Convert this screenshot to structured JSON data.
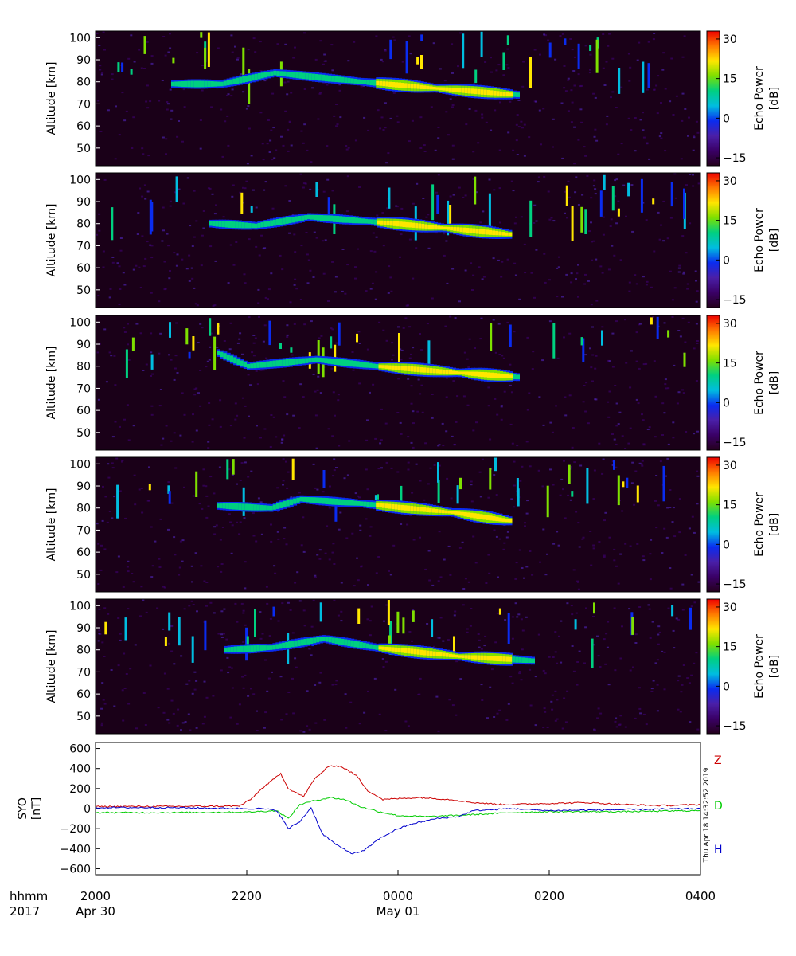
{
  "chart_data": [
    {
      "type": "heatmap",
      "panel": 1,
      "ylabel": "Altitude [km]",
      "yticks": [
        50,
        60,
        70,
        80,
        90,
        100
      ],
      "ylim": [
        42,
        103
      ],
      "xlim_hours": [
        20,
        28
      ],
      "colorbar": {
        "label_line1": "Echo Power",
        "label_line2": "[dB]",
        "ticks": [
          30,
          15,
          0,
          -15
        ],
        "range": [
          -18,
          33
        ]
      },
      "echo_layer": [
        {
          "x": 21.0,
          "alt": 79
        },
        {
          "x": 21.65,
          "alt": 79
        },
        {
          "x": 22.35,
          "alt": 84
        },
        {
          "x": 23.5,
          "alt": 80
        },
        {
          "x": 0.5,
          "alt": 77
        },
        {
          "x": 1.6,
          "alt": 74
        }
      ]
    },
    {
      "type": "heatmap",
      "panel": 2,
      "ylabel": "Altitude [km]",
      "yticks": [
        50,
        60,
        70,
        80,
        90,
        100
      ],
      "ylim": [
        42,
        103
      ],
      "xlim_hours": [
        20,
        28
      ],
      "colorbar": {
        "label_line1": "Echo Power",
        "label_line2": "[dB]",
        "ticks": [
          30,
          15,
          0,
          -15
        ],
        "range": [
          -18,
          33
        ]
      },
      "echo_layer": [
        {
          "x": 21.5,
          "alt": 80
        },
        {
          "x": 22.1,
          "alt": 79
        },
        {
          "x": 22.8,
          "alt": 83
        },
        {
          "x": 23.6,
          "alt": 81
        },
        {
          "x": 0.6,
          "alt": 78
        },
        {
          "x": 1.5,
          "alt": 75
        }
      ]
    },
    {
      "type": "heatmap",
      "panel": 3,
      "ylabel": "Altitude [km]",
      "yticks": [
        50,
        60,
        70,
        80,
        90,
        100
      ],
      "ylim": [
        42,
        103
      ],
      "xlim_hours": [
        20,
        28
      ],
      "colorbar": {
        "label_line1": "Echo Power",
        "label_line2": "[dB]",
        "ticks": [
          30,
          15,
          0,
          -15
        ],
        "range": [
          -18,
          33
        ]
      },
      "echo_layer": [
        {
          "x": 21.6,
          "alt": 86
        },
        {
          "x": 22.0,
          "alt": 80
        },
        {
          "x": 22.9,
          "alt": 83
        },
        {
          "x": 23.7,
          "alt": 80
        },
        {
          "x": 0.8,
          "alt": 77
        },
        {
          "x": 1.6,
          "alt": 75
        }
      ]
    },
    {
      "type": "heatmap",
      "panel": 4,
      "ylabel": "Altitude [km]",
      "yticks": [
        50,
        60,
        70,
        80,
        90,
        100
      ],
      "ylim": [
        42,
        103
      ],
      "xlim_hours": [
        20,
        28
      ],
      "colorbar": {
        "label_line1": "Echo Power",
        "label_line2": "[dB]",
        "ticks": [
          30,
          15,
          0,
          -15
        ],
        "range": [
          -18,
          33
        ]
      },
      "echo_layer": [
        {
          "x": 21.6,
          "alt": 81
        },
        {
          "x": 22.3,
          "alt": 80
        },
        {
          "x": 22.7,
          "alt": 84
        },
        {
          "x": 23.5,
          "alt": 82
        },
        {
          "x": 0.7,
          "alt": 78
        },
        {
          "x": 1.5,
          "alt": 74
        }
      ]
    },
    {
      "type": "heatmap",
      "panel": 5,
      "ylabel": "Altitude [km]",
      "yticks": [
        50,
        60,
        70,
        80,
        90,
        100
      ],
      "ylim": [
        42,
        103
      ],
      "xlim_hours": [
        20,
        28
      ],
      "colorbar": {
        "label_line1": "Echo Power",
        "label_line2": "[dB]",
        "ticks": [
          30,
          15,
          0,
          -15
        ],
        "range": [
          -18,
          33
        ]
      },
      "echo_layer": [
        {
          "x": 21.7,
          "alt": 80
        },
        {
          "x": 22.3,
          "alt": 81
        },
        {
          "x": 23.0,
          "alt": 85
        },
        {
          "x": 23.7,
          "alt": 81
        },
        {
          "x": 0.8,
          "alt": 77
        },
        {
          "x": 1.8,
          "alt": 75
        }
      ]
    },
    {
      "type": "line",
      "panel": 6,
      "ylabel_line1": "SYO",
      "ylabel_line2": "[nT]",
      "ylim": [
        -660,
        660
      ],
      "yticks": [
        600,
        400,
        200,
        0,
        -200,
        -400,
        -600
      ],
      "series": [
        {
          "name": "Z",
          "color": "#cc0000",
          "x": [
            20.0,
            21.0,
            21.9,
            22.05,
            22.2,
            22.45,
            22.55,
            22.75,
            22.9,
            23.1,
            23.25,
            23.45,
            23.6,
            23.8,
            0.0,
            0.3,
            0.7,
            1.0,
            1.4,
            1.9,
            2.5,
            3.0,
            3.5,
            4.0
          ],
          "y": [
            20,
            22,
            25,
            90,
            200,
            350,
            200,
            120,
            300,
            430,
            420,
            330,
            180,
            90,
            100,
            110,
            90,
            60,
            40,
            50,
            60,
            40,
            30,
            40
          ]
        },
        {
          "name": "D",
          "color": "#00cc00",
          "x": [
            20.0,
            21.0,
            22.0,
            22.4,
            22.55,
            22.7,
            22.9,
            23.1,
            23.3,
            23.5,
            23.75,
            0.0,
            0.4,
            1.0,
            1.5,
            2.0,
            3.0,
            4.0
          ],
          "y": [
            -40,
            -40,
            -35,
            -20,
            -100,
            40,
            80,
            110,
            90,
            20,
            -30,
            -70,
            -80,
            -60,
            -40,
            -30,
            -30,
            -20
          ]
        },
        {
          "name": "H",
          "color": "#0000cc",
          "x": [
            20.0,
            21.0,
            22.0,
            22.2,
            22.4,
            22.55,
            22.7,
            22.85,
            23.0,
            23.2,
            23.4,
            23.55,
            23.75,
            0.0,
            0.2,
            0.5,
            0.8,
            1.0,
            1.5,
            2.0,
            3.0,
            4.0
          ],
          "y": [
            10,
            10,
            0,
            0,
            -20,
            -200,
            -130,
            10,
            -250,
            -370,
            -450,
            -420,
            -300,
            -200,
            -150,
            -100,
            -80,
            -20,
            0,
            -20,
            -10,
            0
          ]
        }
      ]
    }
  ],
  "legend": {
    "z": "Z",
    "d": "D",
    "h": "H"
  },
  "x_axis": {
    "row1_label": "hhmm",
    "row2_label": "2017",
    "ticks": [
      {
        "hours": 20,
        "label": "2000"
      },
      {
        "hours": 22,
        "label": "2200"
      },
      {
        "hours": 24,
        "label": "0000"
      },
      {
        "hours": 26,
        "label": "0200"
      },
      {
        "hours": 28,
        "label": "0400"
      }
    ],
    "dates": [
      {
        "hours": 20,
        "label": "Apr 30"
      },
      {
        "hours": 24,
        "label": "May 01"
      }
    ]
  },
  "timestamp": "Thu Apr 18 14:32:52 2019",
  "colormap": [
    "#24001c",
    "#3a0066",
    "#4a1fa8",
    "#0a2cf0",
    "#00bde0",
    "#00d080",
    "#7ee000",
    "#ffe600",
    "#ff7a00",
    "#ee0000"
  ]
}
